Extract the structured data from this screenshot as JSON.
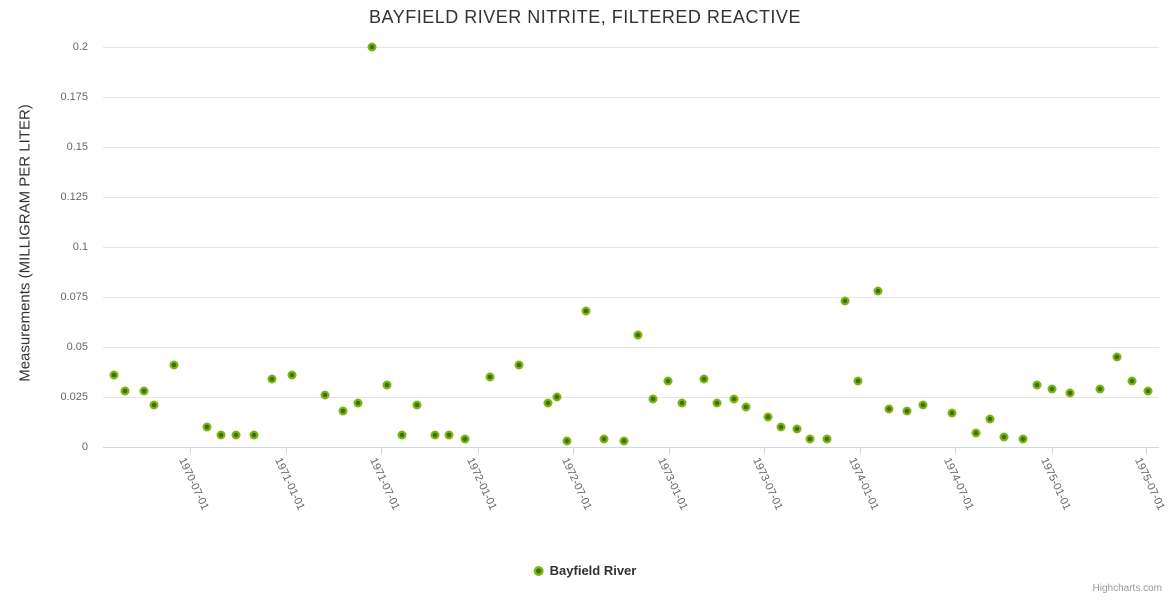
{
  "title": "BAYFIELD RIVER NITRITE, FILTERED REACTIVE",
  "legend": {
    "series_label": "Bayfield River"
  },
  "credit": "Highcharts.com",
  "colors": {
    "marker": "#7eb60c",
    "marker_core": "#3d6e06",
    "grid": "#e6e6e6",
    "axis": "#ccd6eb",
    "title": "#333333",
    "labels": "#666666",
    "credit": "#999999"
  },
  "chart_data": {
    "type": "scatter",
    "title": "BAYFIELD RIVER NITRITE, FILTERED REACTIVE",
    "xlabel": "",
    "ylabel": "Measurements (MILLIGRAM PER LITER)",
    "ylim": [
      0,
      0.2
    ],
    "y_ticks": [
      0,
      0.025,
      0.05,
      0.075,
      0.1,
      0.125,
      0.15,
      0.175,
      0.2
    ],
    "xlim": [
      "1970-01-16",
      "1975-07-25"
    ],
    "x_ticks": [
      "1970-07-01",
      "1971-01-01",
      "1971-07-01",
      "1972-01-01",
      "1972-07-01",
      "1973-01-01",
      "1973-07-01",
      "1974-01-01",
      "1974-07-01",
      "1975-01-01",
      "1975-07-01"
    ],
    "grid": true,
    "legend_position": "bottom-center",
    "series": [
      {
        "name": "Bayfield River",
        "points": [
          [
            "1970-02-06",
            0.036
          ],
          [
            "1970-02-27",
            0.028
          ],
          [
            "1970-04-04",
            0.028
          ],
          [
            "1970-04-23",
            0.021
          ],
          [
            "1970-05-31",
            0.041
          ],
          [
            "1970-08-02",
            0.01
          ],
          [
            "1970-08-29",
            0.006
          ],
          [
            "1970-09-26",
            0.006
          ],
          [
            "1970-10-31",
            0.006
          ],
          [
            "1970-12-04",
            0.034
          ],
          [
            "1971-01-11",
            0.036
          ],
          [
            "1971-03-15",
            0.026
          ],
          [
            "1971-04-20",
            0.018
          ],
          [
            "1971-05-17",
            0.022
          ],
          [
            "1971-06-14",
            0.2
          ],
          [
            "1971-07-13",
            0.031
          ],
          [
            "1971-08-10",
            0.006
          ],
          [
            "1971-09-08",
            0.021
          ],
          [
            "1971-10-12",
            0.006
          ],
          [
            "1971-11-08",
            0.006
          ],
          [
            "1971-12-08",
            0.004
          ],
          [
            "1972-01-25",
            0.035
          ],
          [
            "1972-03-20",
            0.041
          ],
          [
            "1972-05-14",
            0.022
          ],
          [
            "1972-05-31",
            0.025
          ],
          [
            "1972-06-20",
            0.003
          ],
          [
            "1972-07-26",
            0.068
          ],
          [
            "1972-08-29",
            0.004
          ],
          [
            "1972-10-06",
            0.003
          ],
          [
            "1972-11-02",
            0.056
          ],
          [
            "1972-12-01",
            0.024
          ],
          [
            "1972-12-29",
            0.033
          ],
          [
            "1973-01-25",
            0.022
          ],
          [
            "1973-03-08",
            0.034
          ],
          [
            "1973-04-02",
            0.022
          ],
          [
            "1973-05-04",
            0.024
          ],
          [
            "1973-05-27",
            0.02
          ],
          [
            "1973-07-08",
            0.015
          ],
          [
            "1973-08-03",
            0.01
          ],
          [
            "1973-09-01",
            0.009
          ],
          [
            "1973-09-26",
            0.004
          ],
          [
            "1973-10-30",
            0.004
          ],
          [
            "1973-12-02",
            0.073
          ],
          [
            "1973-12-28",
            0.033
          ],
          [
            "1974-02-03",
            0.078
          ],
          [
            "1974-02-24",
            0.019
          ],
          [
            "1974-03-30",
            0.018
          ],
          [
            "1974-04-30",
            0.021
          ],
          [
            "1974-06-24",
            0.017
          ],
          [
            "1974-08-09",
            0.007
          ],
          [
            "1974-09-05",
            0.014
          ],
          [
            "1974-10-02",
            0.005
          ],
          [
            "1974-11-07",
            0.004
          ],
          [
            "1974-12-04",
            0.031
          ],
          [
            "1975-01-01",
            0.029
          ],
          [
            "1975-02-06",
            0.027
          ],
          [
            "1975-04-04",
            0.029
          ],
          [
            "1975-05-06",
            0.045
          ],
          [
            "1975-06-04",
            0.033
          ],
          [
            "1975-07-04",
            0.028
          ]
        ]
      }
    ]
  }
}
